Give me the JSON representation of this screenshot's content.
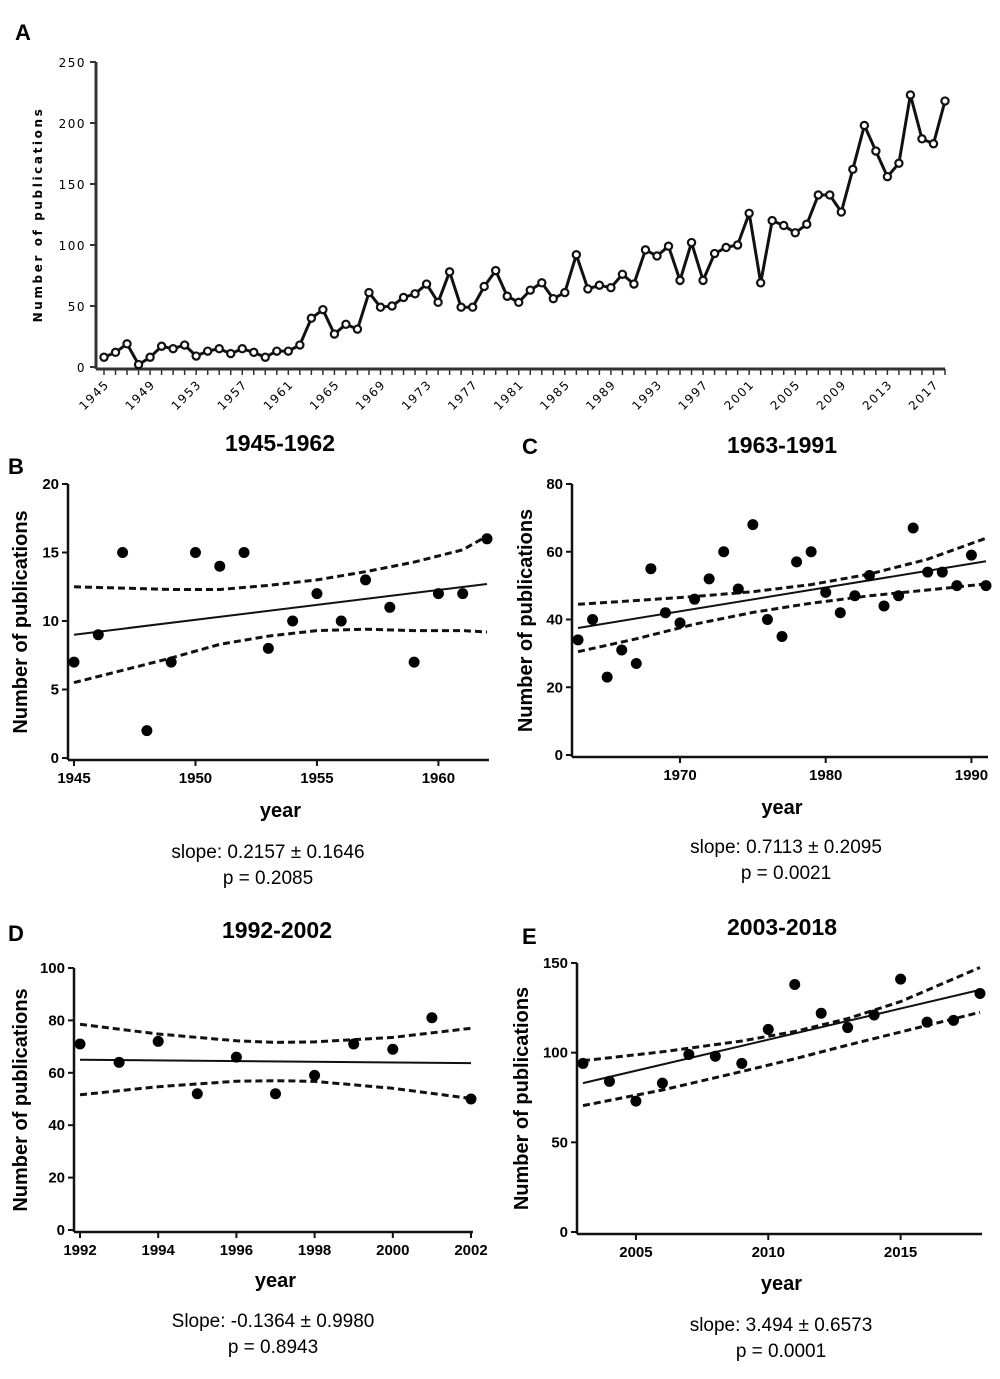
{
  "chart_data": [
    {
      "panel": "A",
      "type": "line",
      "title": "",
      "xlabel": "",
      "ylabel": "Number of publications",
      "xlim": [
        1945,
        2018
      ],
      "ylim": [
        0,
        250
      ],
      "yticks": [
        "0",
        "50",
        "100",
        "150",
        "200",
        "250"
      ],
      "xticks": [
        "1945",
        "1949",
        "1953",
        "1957",
        "1961",
        "1965",
        "1969",
        "1973",
        "1977",
        "1981",
        "1985",
        "1989",
        "1993",
        "1997",
        "2001",
        "2005",
        "2009",
        "2013",
        "2017"
      ],
      "x": [
        1945,
        1946,
        1947,
        1948,
        1949,
        1950,
        1951,
        1952,
        1953,
        1954,
        1955,
        1956,
        1957,
        1958,
        1959,
        1960,
        1961,
        1962,
        1963,
        1964,
        1965,
        1966,
        1967,
        1968,
        1969,
        1970,
        1971,
        1972,
        1973,
        1974,
        1975,
        1976,
        1977,
        1978,
        1979,
        1980,
        1981,
        1982,
        1983,
        1984,
        1985,
        1986,
        1987,
        1988,
        1989,
        1990,
        1991,
        1992,
        1993,
        1994,
        1995,
        1996,
        1997,
        1998,
        1999,
        2000,
        2001,
        2002,
        2003,
        2004,
        2005,
        2006,
        2007,
        2008,
        2009,
        2010,
        2011,
        2012,
        2013,
        2014,
        2015,
        2016,
        2017,
        2018
      ],
      "values": [
        8,
        12,
        19,
        2,
        8,
        17,
        15,
        18,
        9,
        13,
        15,
        11,
        15,
        12,
        8,
        13,
        13,
        18,
        40,
        47,
        27,
        35,
        31,
        61,
        49,
        50,
        57,
        60,
        68,
        53,
        78,
        49,
        49,
        66,
        79,
        58,
        53,
        63,
        69,
        56,
        61,
        92,
        64,
        67,
        65,
        76,
        68,
        96,
        91,
        99,
        71,
        102,
        71,
        93,
        98,
        100,
        126,
        69,
        120,
        116,
        110,
        117,
        141,
        141,
        127,
        162,
        198,
        177,
        156,
        167,
        223,
        187,
        183,
        218
      ],
      "grid": false
    },
    {
      "panel": "B",
      "type": "scatter",
      "title": "1945-1962",
      "xlabel": "year",
      "ylabel": "Number of publications",
      "xlim": [
        1945,
        1962
      ],
      "ylim": [
        0,
        20
      ],
      "xticks": [
        "1945",
        "1950",
        "1955",
        "1960"
      ],
      "yticks": [
        "0",
        "5",
        "10",
        "15",
        "20"
      ],
      "x": [
        1945,
        1946,
        1947,
        1948,
        1949,
        1950,
        1951,
        1952,
        1953,
        1954,
        1955,
        1956,
        1957,
        1958,
        1959,
        1960,
        1961,
        1962
      ],
      "values": [
        7,
        9,
        15,
        2,
        7,
        15,
        14,
        15,
        8,
        10,
        12,
        10,
        13,
        11,
        7,
        12,
        12,
        16
      ],
      "fit_line": [
        [
          1945,
          9.0
        ],
        [
          1962,
          12.7
        ]
      ],
      "ci_upper": [
        [
          1945,
          12.5
        ],
        [
          1947,
          12.4
        ],
        [
          1949,
          12.3
        ],
        [
          1951,
          12.3
        ],
        [
          1953,
          12.6
        ],
        [
          1955,
          13.0
        ],
        [
          1957,
          13.6
        ],
        [
          1959,
          14.3
        ],
        [
          1961,
          15.2
        ],
        [
          1962,
          16.2
        ]
      ],
      "ci_lower": [
        [
          1945,
          5.5
        ],
        [
          1947,
          6.4
        ],
        [
          1949,
          7.3
        ],
        [
          1951,
          8.3
        ],
        [
          1953,
          8.9
        ],
        [
          1955,
          9.3
        ],
        [
          1957,
          9.4
        ],
        [
          1959,
          9.3
        ],
        [
          1961,
          9.3
        ],
        [
          1962,
          9.2
        ]
      ],
      "stats": [
        "slope: 0.2157 ± 0.1646",
        "p = 0.2085"
      ],
      "grid": false
    },
    {
      "panel": "C",
      "type": "scatter",
      "title": "1963-1991",
      "xlabel": "year",
      "ylabel": "Number of publications",
      "xlim": [
        1963,
        1991
      ],
      "ylim": [
        0,
        80
      ],
      "xticks": [
        "1970",
        "1980",
        "1990"
      ],
      "yticks": [
        "0",
        "20",
        "40",
        "60",
        "80"
      ],
      "x": [
        1963,
        1964,
        1965,
        1966,
        1967,
        1968,
        1969,
        1970,
        1971,
        1972,
        1973,
        1974,
        1975,
        1976,
        1977,
        1978,
        1979,
        1980,
        1981,
        1982,
        1983,
        1984,
        1985,
        1986,
        1987,
        1988,
        1989,
        1990,
        1991
      ],
      "values": [
        34,
        40,
        23,
        31,
        27,
        55,
        42,
        39,
        46,
        52,
        60,
        49,
        68,
        40,
        35,
        57,
        60,
        48,
        42,
        47,
        53,
        44,
        47,
        67,
        54,
        54,
        50,
        59,
        50
      ],
      "fit_line": [
        [
          1963,
          37.5
        ],
        [
          1991,
          57.2
        ]
      ],
      "ci_upper": [
        [
          1963,
          44.5
        ],
        [
          1967,
          45.6
        ],
        [
          1971,
          46.8
        ],
        [
          1975,
          48.2
        ],
        [
          1979,
          50.3
        ],
        [
          1983,
          53.4
        ],
        [
          1987,
          57.8
        ],
        [
          1991,
          64.0
        ]
      ],
      "ci_lower": [
        [
          1963,
          30.5
        ],
        [
          1967,
          34.3
        ],
        [
          1971,
          38.6
        ],
        [
          1975,
          42.1
        ],
        [
          1979,
          44.8
        ],
        [
          1983,
          47.0
        ],
        [
          1987,
          48.7
        ],
        [
          1991,
          50.5
        ]
      ],
      "stats": [
        "slope: 0.7113 ± 0.2095",
        "p = 0.0021"
      ],
      "grid": false
    },
    {
      "panel": "D",
      "type": "scatter",
      "title": "1992-2002",
      "xlabel": "year",
      "ylabel": "Number of publications",
      "xlim": [
        1992,
        2002
      ],
      "ylim": [
        0,
        100
      ],
      "xticks": [
        "1992",
        "1994",
        "1996",
        "1998",
        "2000",
        "2002"
      ],
      "yticks": [
        "0",
        "20",
        "40",
        "60",
        "80",
        "100"
      ],
      "x": [
        1992,
        1993,
        1994,
        1995,
        1996,
        1997,
        1998,
        1999,
        2000,
        2001,
        2002
      ],
      "values": [
        71,
        64,
        72,
        52,
        66,
        52,
        59,
        71,
        69,
        81,
        50
      ],
      "fit_line": [
        [
          1992,
          65.0
        ],
        [
          2002,
          63.7
        ]
      ],
      "ci_upper": [
        [
          1992,
          78.5
        ],
        [
          1994,
          74.8
        ],
        [
          1996,
          72.2
        ],
        [
          1997,
          71.6
        ],
        [
          1998,
          71.8
        ],
        [
          2000,
          73.5
        ],
        [
          2002,
          77.0
        ]
      ],
      "ci_lower": [
        [
          1992,
          51.6
        ],
        [
          1994,
          54.7
        ],
        [
          1996,
          56.8
        ],
        [
          1997,
          57.0
        ],
        [
          1998,
          56.7
        ],
        [
          2000,
          54.1
        ],
        [
          2002,
          50.2
        ]
      ],
      "stats": [
        "Slope: -0.1364 ± 0.9980",
        "p = 0.8943"
      ],
      "grid": false
    },
    {
      "panel": "E",
      "type": "scatter",
      "title": "2003-2018",
      "xlabel": "year",
      "ylabel": "Number of publications",
      "xlim": [
        2003,
        2018
      ],
      "ylim": [
        0,
        150
      ],
      "xticks": [
        "2005",
        "2010",
        "2015"
      ],
      "yticks": [
        "0",
        "50",
        "100",
        "150"
      ],
      "x": [
        2003,
        2004,
        2005,
        2006,
        2007,
        2008,
        2009,
        2010,
        2011,
        2012,
        2013,
        2014,
        2015,
        2016,
        2017,
        2018
      ],
      "values": [
        94,
        84,
        73,
        83,
        99,
        98,
        94,
        113,
        138,
        122,
        114,
        121,
        141,
        117,
        118,
        133
      ],
      "fit_line": [
        [
          2003,
          83.0
        ],
        [
          2018,
          135.0
        ]
      ],
      "ci_upper": [
        [
          2003,
          95.5
        ],
        [
          2006,
          100.5
        ],
        [
          2009,
          106.5
        ],
        [
          2011,
          111.8
        ],
        [
          2013,
          119.0
        ],
        [
          2015,
          128.5
        ],
        [
          2018,
          147.5
        ]
      ],
      "ci_lower": [
        [
          2003,
          70.5
        ],
        [
          2006,
          79.2
        ],
        [
          2009,
          89.5
        ],
        [
          2011,
          96.6
        ],
        [
          2013,
          104.2
        ],
        [
          2015,
          111.5
        ],
        [
          2018,
          122.5
        ]
      ],
      "stats": [
        "slope: 3.494 ± 0.6573",
        "p = 0.0001"
      ],
      "grid": false
    }
  ]
}
